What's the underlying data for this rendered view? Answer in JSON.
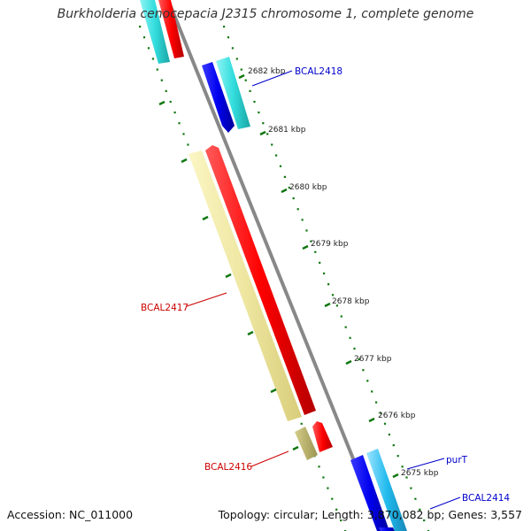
{
  "title": "Burkholderia cenocepacia J2315 chromosome 1, complete genome",
  "accession": "Accession: NC_011000",
  "topology": "Topology: circular; Length: 3,870,082 bp; Genes: 3,557",
  "colors": {
    "forward_cds": "#ff0000",
    "forward_cds_alt": "#eeeeaa",
    "reverse_cds": "#0000ee",
    "reverse_cds_alt": "#33dddd",
    "backbone": "#888888",
    "tick": "#117711",
    "forward_label": "#cc0000",
    "reverse_label": "#0000cc"
  },
  "ticks": [
    {
      "label": "2682 kbp"
    },
    {
      "label": "2681 kbp"
    },
    {
      "label": "2680 kbp"
    },
    {
      "label": "2679 kbp"
    },
    {
      "label": "2678 kbp"
    },
    {
      "label": "2677 kbp"
    },
    {
      "label": "2676 kbp"
    },
    {
      "label": "2675 kbp"
    }
  ],
  "genes": [
    {
      "label": "BCAL2418",
      "strand": "reverse"
    },
    {
      "label": "BCAL2417",
      "strand": "forward"
    },
    {
      "label": "BCAL2416",
      "strand": "forward"
    },
    {
      "label": "purT",
      "strand": "reverse"
    },
    {
      "label": "BCAL2414",
      "strand": "reverse"
    }
  ]
}
